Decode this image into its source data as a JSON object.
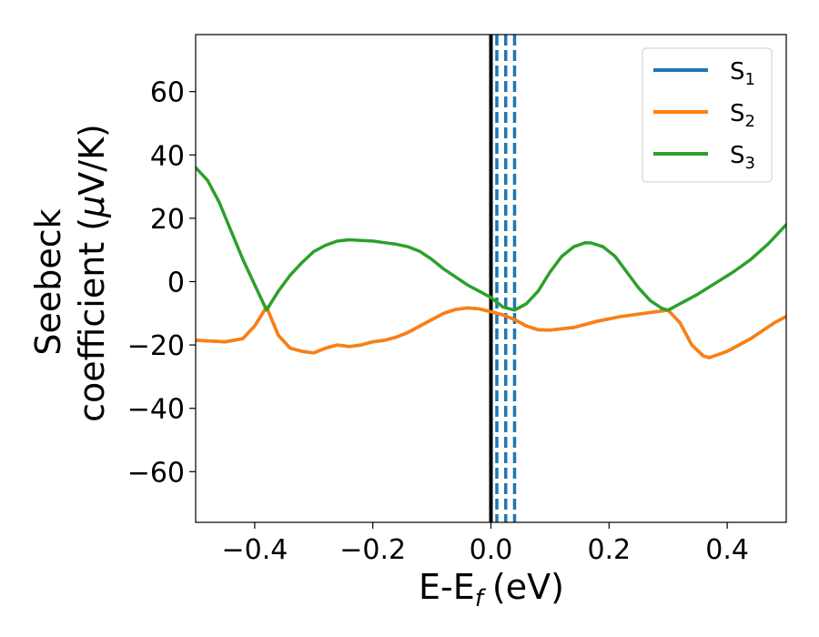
{
  "chart_data": {
    "type": "line",
    "xlabel": "E-E",
    "xlabel_sub": "f",
    "xlabel_unit": "(eV)",
    "ylabel_line1": "Seebeck",
    "ylabel_line2": "coefficient  (",
    "ylabel_mu": "μ",
    "ylabel_unit_end": "V/K)",
    "xlim": [
      -0.5,
      0.5
    ],
    "ylim": [
      -76,
      78
    ],
    "xticks": [
      -0.4,
      -0.2,
      0.0,
      0.2,
      0.4
    ],
    "xtick_labels": [
      "−0.4",
      "−0.2",
      "0.0",
      "0.2",
      "0.4"
    ],
    "yticks": [
      -60,
      -40,
      -20,
      0,
      20,
      40,
      60
    ],
    "ytick_labels": [
      "−60",
      "−40",
      "−20",
      "0",
      "20",
      "40",
      "60"
    ],
    "grid": false,
    "legend_position": "top-right",
    "vertical_lines": [
      {
        "x": 0.0,
        "style": "solid",
        "color": "#000000"
      },
      {
        "x": 0.01,
        "style": "dashed",
        "color": "#1f77b4"
      },
      {
        "x": 0.025,
        "style": "dashed",
        "color": "#1f77b4"
      },
      {
        "x": 0.04,
        "style": "dashed",
        "color": "#1f77b4"
      }
    ],
    "series": [
      {
        "name": "S",
        "sub": "1",
        "color": "#1f77b4",
        "x": [
          -0.5,
          -0.45,
          -0.42,
          -0.4,
          -0.38,
          -0.36,
          -0.34,
          -0.32,
          -0.3,
          -0.28,
          -0.26,
          -0.24,
          -0.22,
          -0.2,
          -0.18,
          -0.16,
          -0.14,
          -0.12,
          -0.1,
          -0.08,
          -0.06,
          -0.04,
          -0.02,
          0.0,
          0.02,
          0.04,
          0.06,
          0.08,
          0.1,
          0.14,
          0.18,
          0.22,
          0.26,
          0.28,
          0.3,
          0.32,
          0.34,
          0.36,
          0.37,
          0.4,
          0.44,
          0.48,
          0.5
        ],
        "y": [
          -18.5,
          -19,
          -18,
          -14,
          -8,
          -17,
          -21,
          -22,
          -22.5,
          -21,
          -20,
          -20.5,
          -20,
          -19,
          -18.5,
          -17.5,
          -16,
          -14,
          -12,
          -10,
          -8.8,
          -8.3,
          -8.6,
          -9.5,
          -10.5,
          -12,
          -14,
          -15.2,
          -15.3,
          -14.5,
          -12.5,
          -11,
          -10,
          -9.5,
          -9,
          -13,
          -20,
          -23.5,
          -24,
          -22,
          -18,
          -13,
          -11
        ]
      },
      {
        "name": "S",
        "sub": "2",
        "color": "#ff7f0e",
        "x": [
          -0.5,
          -0.45,
          -0.42,
          -0.4,
          -0.38,
          -0.36,
          -0.34,
          -0.32,
          -0.3,
          -0.28,
          -0.26,
          -0.24,
          -0.22,
          -0.2,
          -0.18,
          -0.16,
          -0.14,
          -0.12,
          -0.1,
          -0.08,
          -0.06,
          -0.04,
          -0.02,
          0.0,
          0.02,
          0.04,
          0.06,
          0.08,
          0.1,
          0.14,
          0.18,
          0.22,
          0.26,
          0.28,
          0.3,
          0.32,
          0.34,
          0.36,
          0.37,
          0.4,
          0.44,
          0.48,
          0.5
        ],
        "y": [
          -18.5,
          -19,
          -18,
          -14,
          -8,
          -17,
          -21,
          -22,
          -22.5,
          -21,
          -20,
          -20.5,
          -20,
          -19,
          -18.5,
          -17.5,
          -16,
          -14,
          -12,
          -10,
          -8.8,
          -8.3,
          -8.6,
          -9.5,
          -10.5,
          -12,
          -14,
          -15.2,
          -15.3,
          -14.5,
          -12.5,
          -11,
          -10,
          -9.5,
          -9,
          -13,
          -20,
          -23.5,
          -24,
          -22,
          -18,
          -13,
          -11
        ]
      },
      {
        "name": "S",
        "sub": "3",
        "color": "#2ca02c",
        "x": [
          -0.5,
          -0.48,
          -0.46,
          -0.44,
          -0.42,
          -0.4,
          -0.38,
          -0.36,
          -0.34,
          -0.32,
          -0.3,
          -0.28,
          -0.26,
          -0.24,
          -0.22,
          -0.2,
          -0.18,
          -0.16,
          -0.14,
          -0.12,
          -0.1,
          -0.08,
          -0.06,
          -0.04,
          -0.02,
          0.0,
          0.02,
          0.04,
          0.06,
          0.08,
          0.1,
          0.12,
          0.14,
          0.16,
          0.17,
          0.19,
          0.21,
          0.23,
          0.25,
          0.27,
          0.29,
          0.3,
          0.32,
          0.35,
          0.38,
          0.41,
          0.44,
          0.47,
          0.5
        ],
        "y": [
          36,
          32,
          25,
          16,
          7,
          -1,
          -9,
          -3,
          2,
          6,
          9.5,
          11.5,
          12.8,
          13.2,
          13,
          12.8,
          12.3,
          11.8,
          11,
          9.5,
          7,
          4,
          1.5,
          -1,
          -3,
          -5,
          -8,
          -9,
          -7,
          -3,
          3,
          8,
          11,
          12.3,
          12.2,
          11,
          8,
          3,
          -2,
          -6,
          -8.5,
          -9,
          -7,
          -4,
          -0.5,
          3,
          7,
          12,
          18
        ]
      }
    ]
  }
}
